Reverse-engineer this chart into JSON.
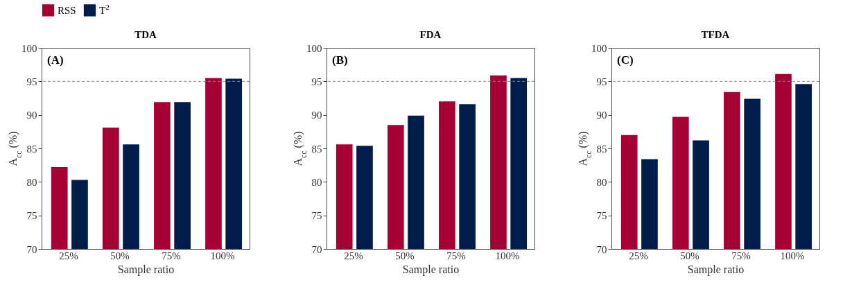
{
  "chart_data": [
    {
      "type": "bar",
      "title": "TDA",
      "xlabel": "Sample ratio",
      "ylabel": "A$_{cc}$ (%)",
      "categories": [
        "25%",
        "50%",
        "75%",
        "100%"
      ],
      "series": [
        {
          "name": "RSS",
          "color": "#a50034",
          "values": [
            82.2,
            88.1,
            91.9,
            95.5
          ]
        },
        {
          "name": "T$^{2}$",
          "color": "#001c4a",
          "values": [
            80.3,
            85.6,
            91.9,
            95.4
          ]
        }
      ],
      "ylim": [
        70,
        100
      ],
      "yticks": [
        70,
        75,
        80,
        85,
        90,
        95,
        100
      ],
      "ref_lines": [
        {
          "axis": "y",
          "value": 95,
          "line_style": "dashed"
        }
      ],
      "annotations": [
        "(A)"
      ],
      "legend": "top"
    },
    {
      "type": "bar",
      "title": "FDA",
      "xlabel": "Sample ratio",
      "ylabel": "A$_{cc}$ (%)",
      "categories": [
        "25%",
        "50%",
        "75%",
        "100%"
      ],
      "series": [
        {
          "name": "RSS",
          "color": "#a50034",
          "values": [
            85.6,
            88.5,
            92.0,
            95.9
          ]
        },
        {
          "name": "T$^{2}$",
          "color": "#001c4a",
          "values": [
            85.4,
            89.9,
            91.6,
            95.5
          ]
        }
      ],
      "ylim": [
        70,
        100
      ],
      "yticks": [
        70,
        75,
        80,
        85,
        90,
        95,
        100
      ],
      "ref_lines": [
        {
          "axis": "y",
          "value": 95,
          "line_style": "dashed"
        }
      ],
      "annotations": [
        "(B)"
      ],
      "legend": "top"
    },
    {
      "type": "bar",
      "title": "TFDA",
      "xlabel": "Sample ratio",
      "ylabel": "A$_{cc}$ (%)",
      "categories": [
        "25%",
        "50%",
        "75%",
        "100%"
      ],
      "series": [
        {
          "name": "RSS",
          "color": "#a50034",
          "values": [
            87.0,
            89.7,
            93.4,
            96.1
          ]
        },
        {
          "name": "T$^{2}$",
          "color": "#001c4a",
          "values": [
            83.4,
            86.2,
            92.4,
            94.6
          ]
        }
      ],
      "ylim": [
        70,
        100
      ],
      "yticks": [
        70,
        75,
        80,
        85,
        90,
        95,
        100
      ],
      "ref_lines": [
        {
          "axis": "y",
          "value": 95,
          "line_style": "dashed"
        }
      ],
      "annotations": [
        "(C)"
      ],
      "legend": "top"
    }
  ]
}
